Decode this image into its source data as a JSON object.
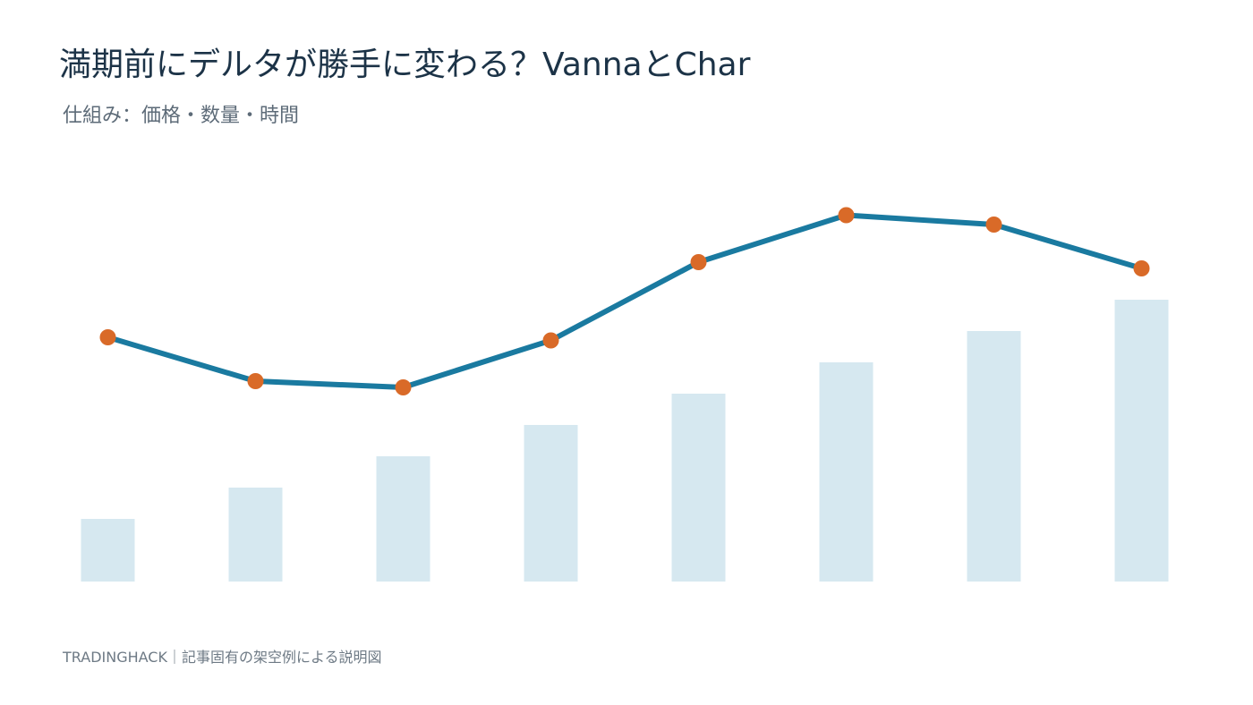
{
  "chart_data": {
    "type": "combo",
    "title": "満期前にデルタが勝手に変わる？VannaとChar",
    "subtitle": "仕組み：価格・数量・時間",
    "footer": "TRADINGHACK｜記事固有の架空例による説明図",
    "categories": [
      null,
      null,
      null,
      null,
      null,
      null,
      null,
      null
    ],
    "ylim": [
      0,
      12
    ],
    "series": [
      {
        "type": "bar",
        "color": "#d6e8f0",
        "values": [
          2,
          3,
          4,
          5,
          6,
          7,
          8,
          9
        ]
      },
      {
        "type": "line",
        "color": "#1a7aa0",
        "marker_color": "#d96a28",
        "values": [
          7.8,
          6.4,
          6.2,
          7.7,
          10.2,
          11.7,
          11.4,
          10.0
        ]
      }
    ]
  }
}
